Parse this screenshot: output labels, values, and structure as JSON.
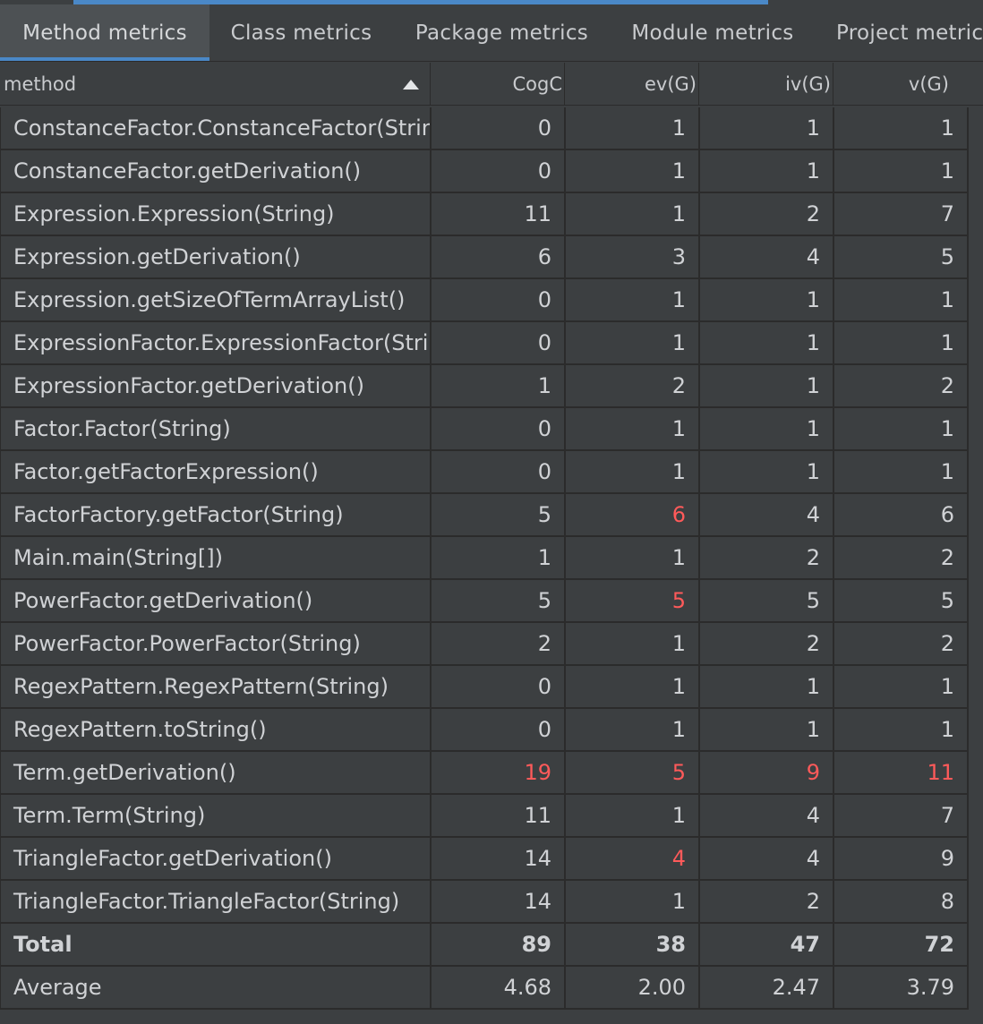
{
  "tabs": [
    {
      "label": "Method metrics",
      "active": true
    },
    {
      "label": "Class metrics",
      "active": false
    },
    {
      "label": "Package metrics",
      "active": false
    },
    {
      "label": "Module metrics",
      "active": false
    },
    {
      "label": "Project metric",
      "active": false
    }
  ],
  "columns": {
    "method": "method",
    "cogc": "CogC",
    "evg": "ev(G)",
    "ivg": "iv(G)",
    "vg": "v(G)"
  },
  "rows": [
    {
      "method": "ConstanceFactor.ConstanceFactor(String)",
      "cogc": "0",
      "evg": "1",
      "ivg": "1",
      "vg": "1"
    },
    {
      "method": "ConstanceFactor.getDerivation()",
      "cogc": "0",
      "evg": "1",
      "ivg": "1",
      "vg": "1"
    },
    {
      "method": "Expression.Expression(String)",
      "cogc": "11",
      "evg": "1",
      "ivg": "2",
      "vg": "7"
    },
    {
      "method": "Expression.getDerivation()",
      "cogc": "6",
      "evg": "3",
      "ivg": "4",
      "vg": "5"
    },
    {
      "method": "Expression.getSizeOfTermArrayList()",
      "cogc": "0",
      "evg": "1",
      "ivg": "1",
      "vg": "1"
    },
    {
      "method": "ExpressionFactor.ExpressionFactor(String)",
      "cogc": "0",
      "evg": "1",
      "ivg": "1",
      "vg": "1"
    },
    {
      "method": "ExpressionFactor.getDerivation()",
      "cogc": "1",
      "evg": "2",
      "ivg": "1",
      "vg": "2"
    },
    {
      "method": "Factor.Factor(String)",
      "cogc": "0",
      "evg": "1",
      "ivg": "1",
      "vg": "1"
    },
    {
      "method": "Factor.getFactorExpression()",
      "cogc": "0",
      "evg": "1",
      "ivg": "1",
      "vg": "1"
    },
    {
      "method": "FactorFactory.getFactor(String)",
      "cogc": "5",
      "evg": "6",
      "ivg": "4",
      "vg": "6",
      "warn": [
        "evg"
      ]
    },
    {
      "method": "Main.main(String[])",
      "cogc": "1",
      "evg": "1",
      "ivg": "2",
      "vg": "2"
    },
    {
      "method": "PowerFactor.getDerivation()",
      "cogc": "5",
      "evg": "5",
      "ivg": "5",
      "vg": "5",
      "warn": [
        "evg"
      ]
    },
    {
      "method": "PowerFactor.PowerFactor(String)",
      "cogc": "2",
      "evg": "1",
      "ivg": "2",
      "vg": "2"
    },
    {
      "method": "RegexPattern.RegexPattern(String)",
      "cogc": "0",
      "evg": "1",
      "ivg": "1",
      "vg": "1"
    },
    {
      "method": "RegexPattern.toString()",
      "cogc": "0",
      "evg": "1",
      "ivg": "1",
      "vg": "1"
    },
    {
      "method": "Term.getDerivation()",
      "cogc": "19",
      "evg": "5",
      "ivg": "9",
      "vg": "11",
      "warn": [
        "cogc",
        "evg",
        "ivg",
        "vg"
      ]
    },
    {
      "method": "Term.Term(String)",
      "cogc": "11",
      "evg": "1",
      "ivg": "4",
      "vg": "7"
    },
    {
      "method": "TriangleFactor.getDerivation()",
      "cogc": "14",
      "evg": "4",
      "ivg": "4",
      "vg": "9",
      "warn": [
        "evg"
      ]
    },
    {
      "method": "TriangleFactor.TriangleFactor(String)",
      "cogc": "14",
      "evg": "1",
      "ivg": "2",
      "vg": "8"
    }
  ],
  "total": {
    "method": "Total",
    "cogc": "89",
    "evg": "38",
    "ivg": "47",
    "vg": "72"
  },
  "average": {
    "method": "Average",
    "cogc": "4.68",
    "evg": "2.00",
    "ivg": "2.47",
    "vg": "3.79"
  },
  "colors": {
    "accent": "#4a88c7",
    "warning": "#ff5a5a",
    "background": "#3c3f41"
  },
  "icons": {
    "sort": "sort-ascending-icon"
  }
}
